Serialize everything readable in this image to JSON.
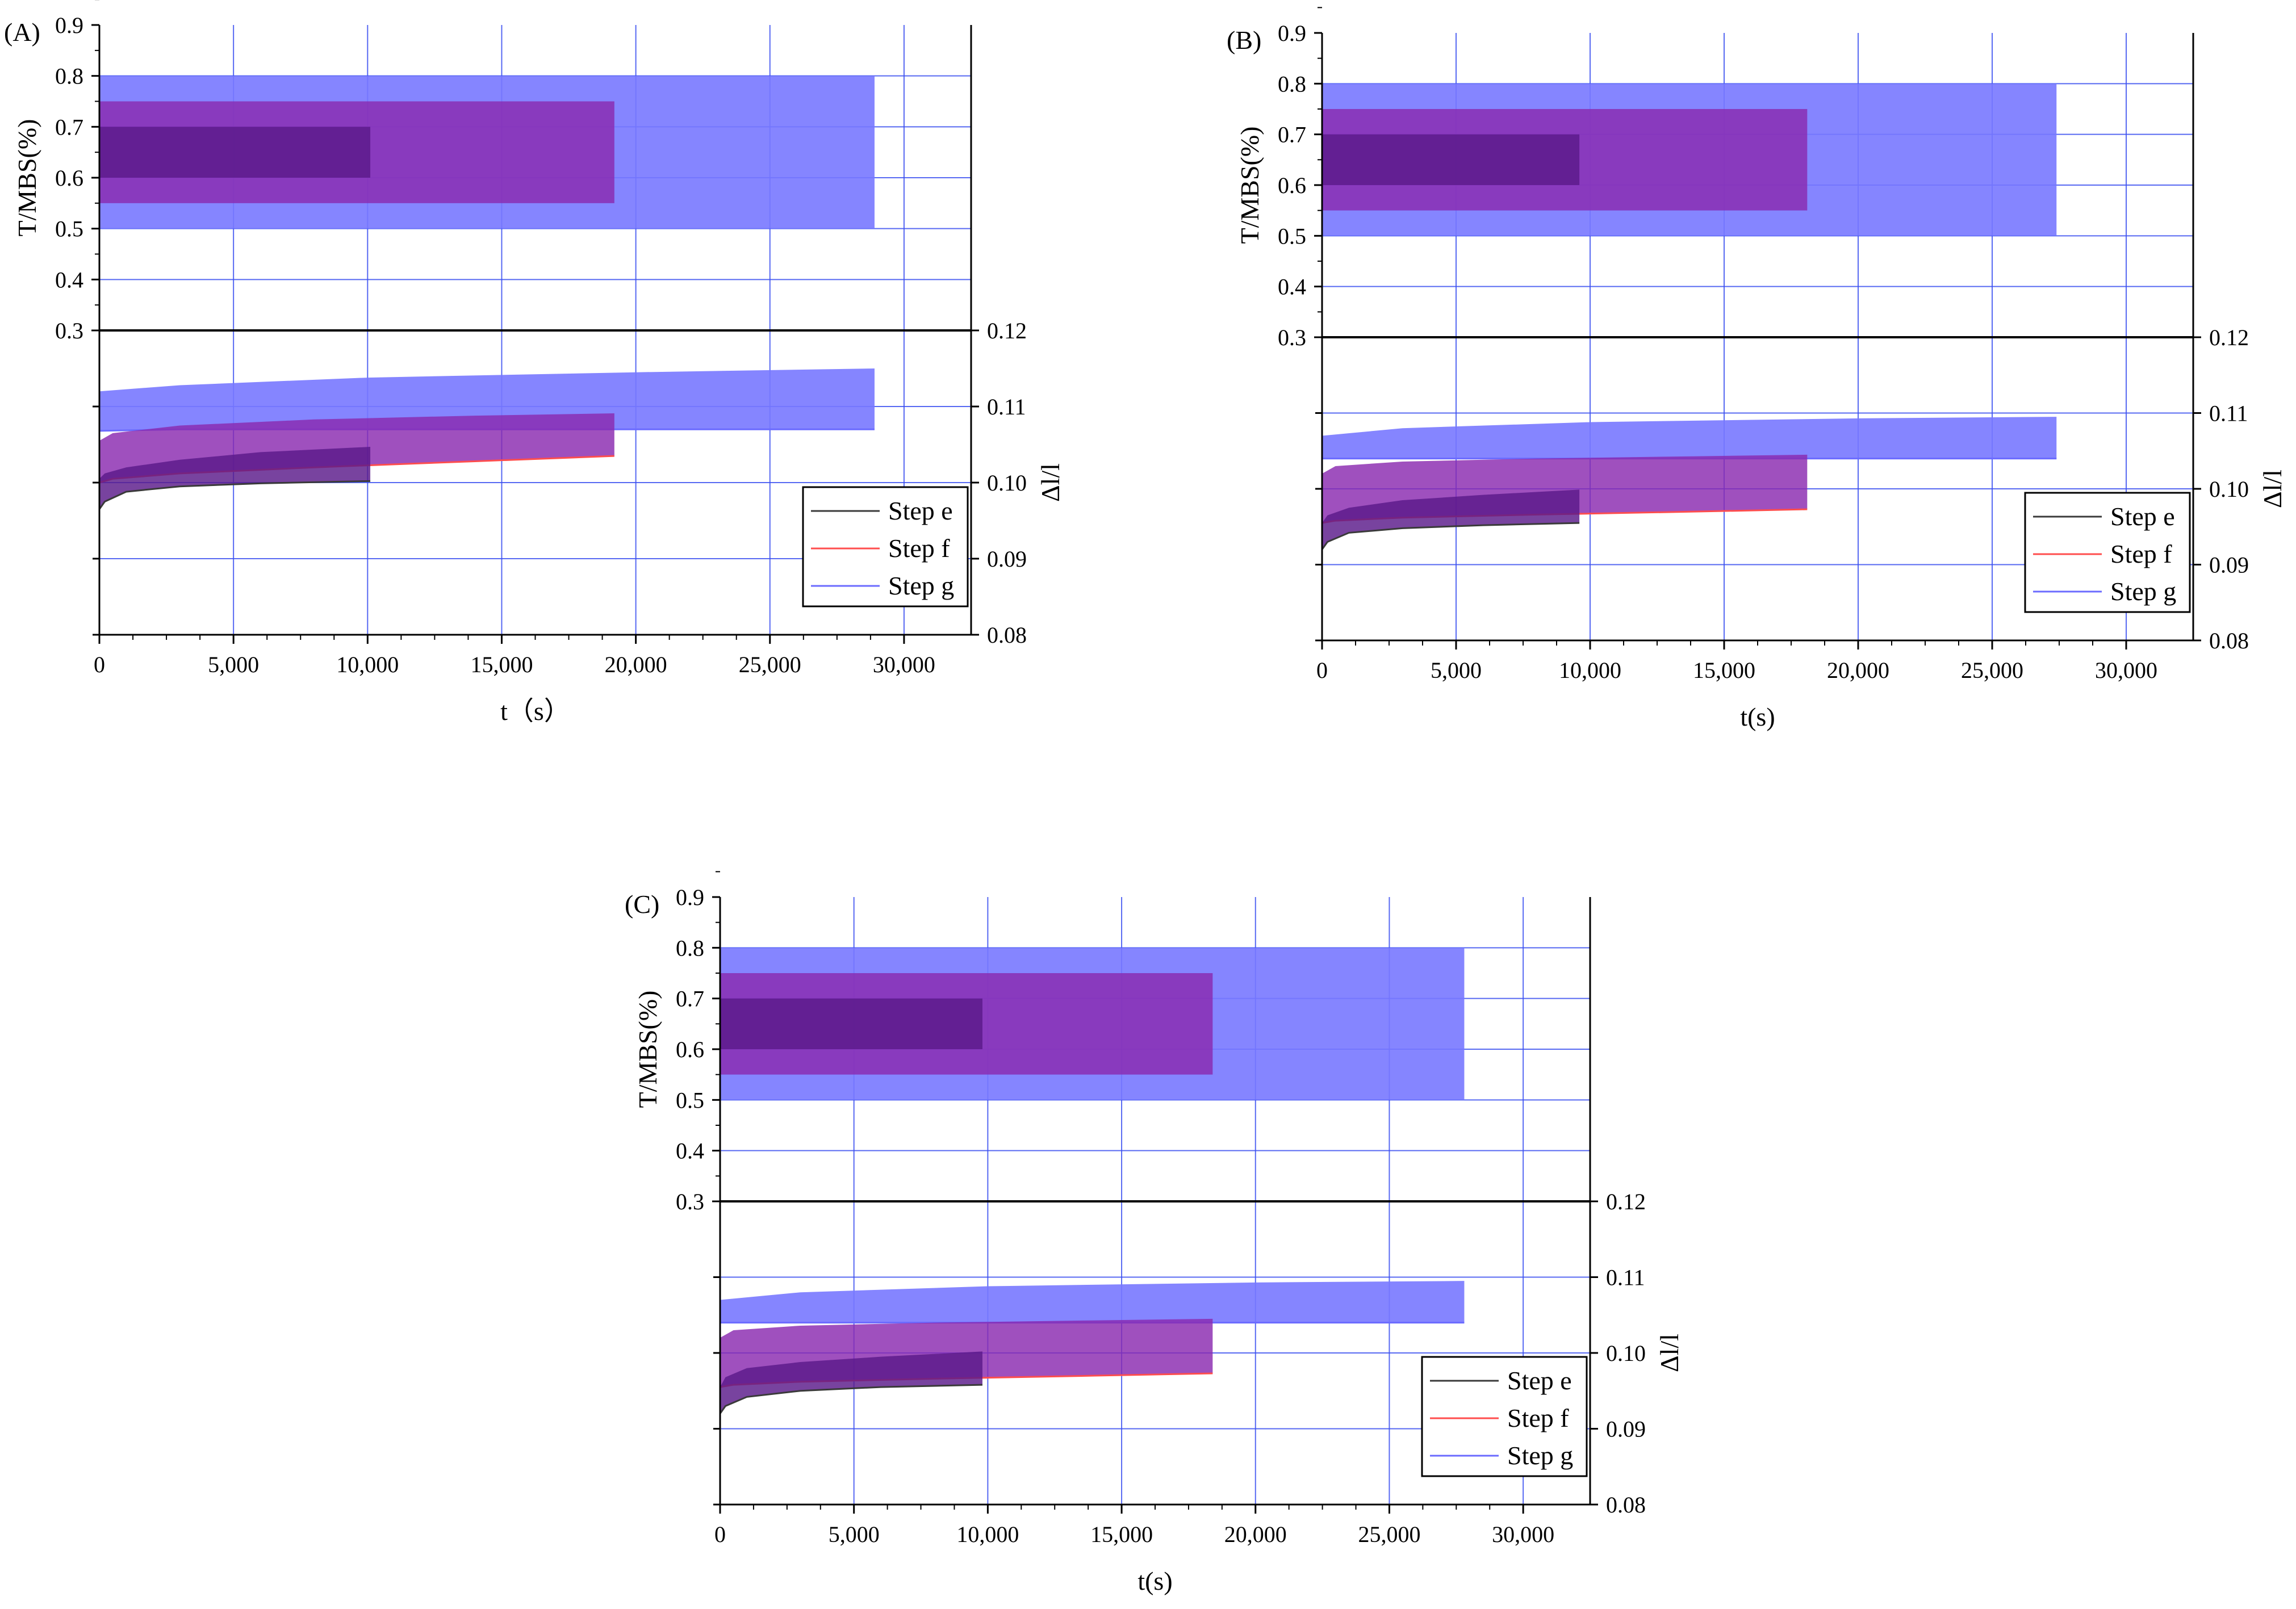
{
  "colors": {
    "step_e": "#3a3a3a",
    "step_f": "#ff4d4d",
    "step_g": "#6b6bff",
    "band_e": "#5a1a8a",
    "band_f": "#8a2ab0",
    "band_g": "#7878ff",
    "grid": "#3a4ff0",
    "axis": "#000000"
  },
  "chart_data": [
    {
      "panel": "(A)",
      "type": "area",
      "xlabel": "t（s）",
      "ylabel_top": "T/MBS(%)",
      "ylabel_bottom": "Δl/l",
      "xlim": [
        0,
        32500
      ],
      "xticks": [
        0,
        5000,
        10000,
        15000,
        20000,
        25000,
        30000
      ],
      "xtick_labels": [
        "0",
        "5,000",
        "10,000",
        "15,000",
        "20,000",
        "25,000",
        "30,000"
      ],
      "top_ylim": [
        0.3,
        0.9
      ],
      "top_yticks": [
        "0.3",
        "0.4",
        "0.5",
        "0.6",
        "0.7",
        "0.8",
        "0.9"
      ],
      "bottom_ylim": [
        0.08,
        0.12
      ],
      "bottom_yticks": [
        "0.08",
        "0.09",
        "0.10",
        "0.11",
        "0.12"
      ],
      "legend": [
        "Step e",
        "Step f",
        "Step g"
      ],
      "legend_position": "bottom-right",
      "series": [
        {
          "name": "Step e",
          "t_end": 10100,
          "load_band": [
            0.6,
            0.7
          ],
          "strain": {
            "t": [
              0,
              200,
              1000,
              3000,
              6000,
              10100
            ],
            "upper": [
              0.1005,
              0.1012,
              0.102,
              0.103,
              0.104,
              0.1047
            ],
            "lower": [
              0.0965,
              0.0975,
              0.0988,
              0.0995,
              0.0999,
              0.1002
            ]
          }
        },
        {
          "name": "Step f",
          "t_end": 19200,
          "load_band": [
            0.55,
            0.75
          ],
          "strain": {
            "t": [
              0,
              500,
              3000,
              8000,
              14000,
              19200
            ],
            "upper": [
              0.1055,
              0.1065,
              0.1075,
              0.1083,
              0.1088,
              0.1091
            ],
            "lower": [
              0.1,
              0.1005,
              0.1012,
              0.102,
              0.1028,
              0.1035
            ]
          }
        },
        {
          "name": "Step g",
          "t_end": 28900,
          "load_band": [
            0.5,
            0.8
          ],
          "strain": {
            "t": [
              0,
              3000,
              10000,
              20000,
              28900
            ],
            "upper": [
              0.112,
              0.1128,
              0.1138,
              0.1145,
              0.115
            ],
            "lower": [
              0.1068,
              0.107,
              0.107,
              0.107,
              0.107
            ]
          }
        }
      ]
    },
    {
      "panel": "(B)",
      "type": "area",
      "xlabel": "t(s)",
      "ylabel_top": "T/MBS(%)",
      "ylabel_bottom": "Δl/l",
      "xlim": [
        0,
        32500
      ],
      "xticks": [
        0,
        5000,
        10000,
        15000,
        20000,
        25000,
        30000
      ],
      "xtick_labels": [
        "0",
        "5,000",
        "10,000",
        "15,000",
        "20,000",
        "25,000",
        "30,000"
      ],
      "top_ylim": [
        0.3,
        0.9
      ],
      "top_yticks": [
        "0.3",
        "0.4",
        "0.5",
        "0.6",
        "0.7",
        "0.8",
        "0.9"
      ],
      "bottom_ylim": [
        0.08,
        0.12
      ],
      "bottom_yticks": [
        "0.08",
        "0.09",
        "0.10",
        "0.11",
        "0.12"
      ],
      "legend": [
        "Step e",
        "Step f",
        "Step g"
      ],
      "legend_position": "bottom-right",
      "series": [
        {
          "name": "Step e",
          "t_end": 9600,
          "load_band": [
            0.6,
            0.7
          ],
          "strain": {
            "t": [
              0,
              200,
              1000,
              3000,
              6000,
              9600
            ],
            "upper": [
              0.0955,
              0.0965,
              0.0975,
              0.0985,
              0.0992,
              0.0999
            ],
            "lower": [
              0.092,
              0.093,
              0.0942,
              0.0948,
              0.0952,
              0.0955
            ]
          }
        },
        {
          "name": "Step f",
          "t_end": 18100,
          "load_band": [
            0.55,
            0.75
          ],
          "strain": {
            "t": [
              0,
              500,
              3000,
              8000,
              14000,
              18100
            ],
            "upper": [
              0.102,
              0.103,
              0.1036,
              0.104,
              0.1043,
              0.1045
            ],
            "lower": [
              0.0955,
              0.0958,
              0.0962,
              0.0966,
              0.097,
              0.0973
            ]
          }
        },
        {
          "name": "Step g",
          "t_end": 27400,
          "load_band": [
            0.5,
            0.8
          ],
          "strain": {
            "t": [
              0,
              3000,
              10000,
              20000,
              27400
            ],
            "upper": [
              0.107,
              0.108,
              0.1088,
              0.1093,
              0.1095
            ],
            "lower": [
              0.104,
              0.104,
              0.104,
              0.104,
              0.104
            ]
          }
        }
      ]
    },
    {
      "panel": "(C)",
      "type": "area",
      "xlabel": "t(s)",
      "ylabel_top": "T/MBS(%)",
      "ylabel_bottom": "Δl/l",
      "xlim": [
        0,
        32500
      ],
      "xticks": [
        0,
        5000,
        10000,
        15000,
        20000,
        25000,
        30000
      ],
      "xtick_labels": [
        "0",
        "5,000",
        "10,000",
        "15,000",
        "20,000",
        "25,000",
        "30,000"
      ],
      "top_ylim": [
        0.3,
        0.9
      ],
      "top_yticks": [
        "0.3",
        "0.4",
        "0.5",
        "0.6",
        "0.7",
        "0.8",
        "0.9"
      ],
      "bottom_ylim": [
        0.08,
        0.12
      ],
      "bottom_yticks": [
        "0.08",
        "0.09",
        "0.10",
        "0.11",
        "0.12"
      ],
      "legend": [
        "Step e",
        "Step f",
        "Step g"
      ],
      "legend_position": "bottom-right",
      "series": [
        {
          "name": "Step e",
          "t_end": 9800,
          "load_band": [
            0.6,
            0.7
          ],
          "strain": {
            "t": [
              0,
              200,
              1000,
              3000,
              6000,
              9800
            ],
            "upper": [
              0.0955,
              0.0968,
              0.098,
              0.0988,
              0.0995,
              0.1002
            ],
            "lower": [
              0.092,
              0.093,
              0.0942,
              0.095,
              0.0955,
              0.0958
            ]
          }
        },
        {
          "name": "Step f",
          "t_end": 18400,
          "load_band": [
            0.55,
            0.75
          ],
          "strain": {
            "t": [
              0,
              500,
              3000,
              8000,
              14000,
              18400
            ],
            "upper": [
              0.102,
              0.103,
              0.1036,
              0.104,
              0.1043,
              0.1045
            ],
            "lower": [
              0.0955,
              0.0958,
              0.0962,
              0.0966,
              0.097,
              0.0973
            ]
          }
        },
        {
          "name": "Step g",
          "t_end": 27800,
          "load_band": [
            0.5,
            0.8
          ],
          "strain": {
            "t": [
              0,
              3000,
              10000,
              20000,
              27800
            ],
            "upper": [
              0.107,
              0.108,
              0.1088,
              0.1093,
              0.1095
            ],
            "lower": [
              0.104,
              0.104,
              0.104,
              0.104,
              0.104
            ]
          }
        }
      ]
    }
  ]
}
